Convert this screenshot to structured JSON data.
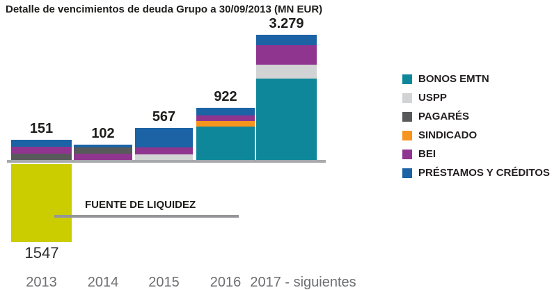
{
  "page": {
    "title": "Detalle de vencimientos de deuda Grupo a 30/09/2013 (MN EUR)"
  },
  "chart_data": {
    "type": "bar",
    "stacked": true,
    "title": "Detalle de vencimientos de deuda Grupo a 30/09/2013 (MN EUR)",
    "unit": "MN EUR",
    "categories": [
      "2013",
      "2014",
      "2015",
      "2016",
      "2017 - siguientes"
    ],
    "totals": [
      151,
      102,
      567,
      922,
      3279
    ],
    "total_labels": [
      "151",
      "102",
      "567",
      "922",
      "3.279"
    ],
    "segments_estimated": true,
    "series": [
      {
        "key": "bonos",
        "name": "BONOS EMTN",
        "color": "#0f879a",
        "values": [
          0,
          0,
          0,
          591,
          2132
        ]
      },
      {
        "key": "uspp",
        "name": "USPP",
        "color": "#d1d3d4",
        "values": [
          0,
          0,
          99,
          0,
          364
        ]
      },
      {
        "key": "pagares",
        "name": "PAGARÉS",
        "color": "#58595b",
        "values": [
          47,
          42,
          0,
          0,
          0
        ]
      },
      {
        "key": "sindicado",
        "name": "SINDICADO",
        "color": "#f7941e",
        "values": [
          0,
          0,
          0,
          98,
          0
        ]
      },
      {
        "key": "bei",
        "name": "BEI",
        "color": "#90358f",
        "values": [
          52,
          41,
          123,
          98,
          510
        ]
      },
      {
        "key": "prestamos",
        "name": "PRÉSTAMOS Y CRÉDITOS",
        "color": "#1b63a5",
        "values": [
          52,
          19,
          345,
          135,
          273
        ]
      }
    ],
    "liquidity_bar": {
      "label": "FUENTE DE LIQUIDEZ",
      "value": 1547,
      "value_label": "1547",
      "category": "2013",
      "color": "#cbcd00",
      "direction": "down"
    },
    "legend_position": "right",
    "axes": {
      "baseline": true,
      "baseline_color": "#a7a9ac",
      "x_label_color": "#6d6e71",
      "gridlines": false
    }
  }
}
